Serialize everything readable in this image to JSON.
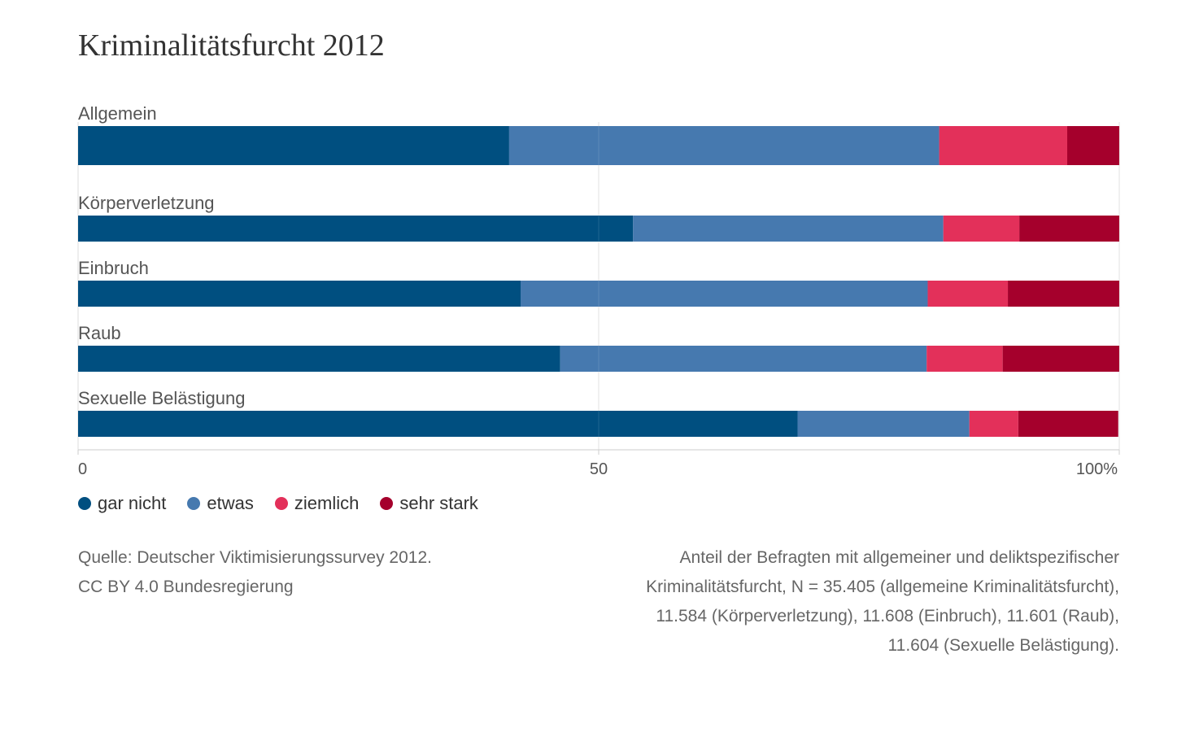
{
  "title": "Kriminalitätsfurcht 2012",
  "chart_data": {
    "type": "bar",
    "orientation": "horizontal",
    "stacked": true,
    "categories": [
      "Allgemein",
      "Körperverletzung",
      "Einbruch",
      "Raub",
      "Sexuelle Belästigung"
    ],
    "series": [
      {
        "name": "gar nicht",
        "color": "#004f80",
        "values": [
          41.4,
          53.3,
          42.5,
          46.3,
          69.1
        ]
      },
      {
        "name": "etwas",
        "color": "#4679af",
        "values": [
          41.3,
          29.8,
          39.1,
          35.2,
          16.5
        ]
      },
      {
        "name": "ziemlich",
        "color": "#e3305a",
        "values": [
          12.3,
          7.3,
          7.7,
          7.3,
          4.7
        ]
      },
      {
        "name": "sehr stark",
        "color": "#a5002c",
        "values": [
          5.0,
          9.6,
          10.7,
          11.2,
          9.6
        ]
      }
    ],
    "xaxis": {
      "ticks": [
        0,
        50,
        100
      ],
      "tick_labels": [
        "0",
        "50",
        "100%"
      ]
    },
    "xlim": [
      0,
      100
    ],
    "grid": true,
    "legend_position": "bottom-left"
  },
  "source": {
    "line1": "Quelle: Deutscher Viktimisierungssurvey 2012.",
    "line2": "CC BY 4.0 Bundesregierung"
  },
  "note": {
    "line1": "Anteil der Befragten mit allgemeiner und deliktspezifischer",
    "line2": "Kriminalitätsfurcht, N = 35.405 (allgemeine Kriminalitätsfurcht),",
    "line3": "11.584 (Körperverletzung), 11.608 (Einbruch), 11.601 (Raub),",
    "line4": "11.604 (Sexuelle Belästigung)."
  }
}
